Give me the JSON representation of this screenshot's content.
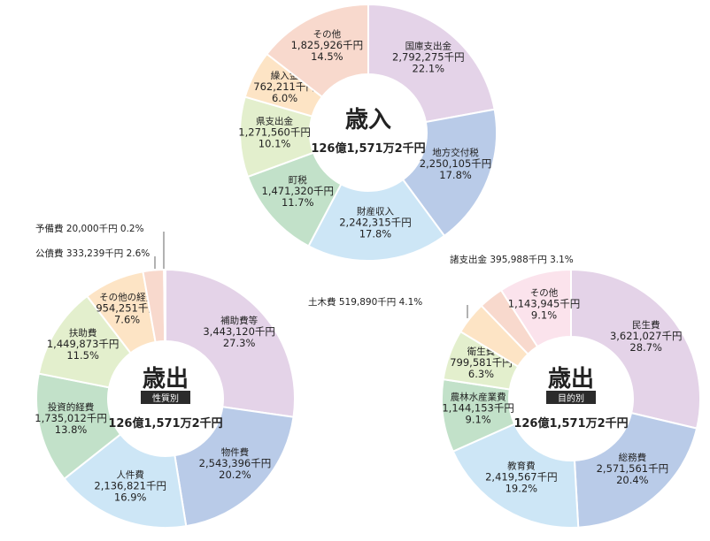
{
  "chart_data": [
    {
      "type": "pie",
      "title": "歳入",
      "subtitle": "",
      "total": "126億1,571万2千円",
      "slices": [
        {
          "name": "国庫支出金",
          "amount": "2,792,275",
          "unit": "千円",
          "percent": 22.1,
          "percent_label": "22.1%",
          "color": "#e4d3e8"
        },
        {
          "name": "地方交付税",
          "amount": "2,250,105",
          "unit": "千円",
          "percent": 17.8,
          "percent_label": "17.8%",
          "color": "#b9cbe8"
        },
        {
          "name": "財産収入",
          "amount": "2,242,315",
          "unit": "千円",
          "percent": 17.8,
          "percent_label": "17.8%",
          "color": "#cde6f6"
        },
        {
          "name": "町税",
          "amount": "1,471,320",
          "unit": "千円",
          "percent": 11.7,
          "percent_label": "11.7%",
          "color": "#c2e1c9"
        },
        {
          "name": "県支出金",
          "amount": "1,271,560",
          "unit": "千円",
          "percent": 10.1,
          "percent_label": "10.1%",
          "color": "#e3efcd"
        },
        {
          "name": "繰入金",
          "amount": "762,211",
          "unit": "千円",
          "percent": 6.0,
          "percent_label": "6.0%",
          "color": "#fde4c5"
        },
        {
          "name": "その他",
          "amount": "1,825,926",
          "unit": "千円",
          "percent": 14.5,
          "percent_label": "14.5%",
          "color": "#f8d9cd"
        }
      ]
    },
    {
      "type": "pie",
      "title": "歳出",
      "subtitle": "性質別",
      "total": "126億1,571万2千円",
      "slices": [
        {
          "name": "補助費等",
          "amount": "3,443,120",
          "unit": "千円",
          "percent": 27.3,
          "percent_label": "27.3%",
          "color": "#e4d3e8"
        },
        {
          "name": "物件費",
          "amount": "2,543,396",
          "unit": "千円",
          "percent": 20.2,
          "percent_label": "20.2%",
          "color": "#b9cbe8"
        },
        {
          "name": "人件費",
          "amount": "2,136,821",
          "unit": "千円",
          "percent": 16.9,
          "percent_label": "16.9%",
          "color": "#cde6f6"
        },
        {
          "name": "投資的経費",
          "amount": "1,735,012",
          "unit": "千円",
          "percent": 13.8,
          "percent_label": "13.8%",
          "color": "#c2e1c9"
        },
        {
          "name": "扶助費",
          "amount": "1,449,873",
          "unit": "千円",
          "percent": 11.5,
          "percent_label": "11.5%",
          "color": "#e3efcd"
        },
        {
          "name": "その他の経費",
          "amount": "954,251",
          "unit": "千円",
          "percent": 7.6,
          "percent_label": "7.6%",
          "color": "#fde4c5"
        },
        {
          "name": "公債費",
          "amount": "333,239",
          "unit": "千円",
          "percent": 2.6,
          "percent_label": "2.6%",
          "color": "#f8d9cd"
        },
        {
          "name": "予備費",
          "amount": "20,000",
          "unit": "千円",
          "percent": 0.2,
          "percent_label": "0.2%",
          "color": "#fbe3ec"
        }
      ]
    },
    {
      "type": "pie",
      "title": "歳出",
      "subtitle": "目的別",
      "total": "126億1,571万2千円",
      "slices": [
        {
          "name": "民生費",
          "amount": "3,621,027",
          "unit": "千円",
          "percent": 28.7,
          "percent_label": "28.7%",
          "color": "#e4d3e8"
        },
        {
          "name": "総務費",
          "amount": "2,571,561",
          "unit": "千円",
          "percent": 20.4,
          "percent_label": "20.4%",
          "color": "#b9cbe8"
        },
        {
          "name": "教育費",
          "amount": "2,419,567",
          "unit": "千円",
          "percent": 19.2,
          "percent_label": "19.2%",
          "color": "#cde6f6"
        },
        {
          "name": "農林水産業費",
          "amount": "1,144,153",
          "unit": "千円",
          "percent": 9.1,
          "percent_label": "9.1%",
          "color": "#c2e1c9"
        },
        {
          "name": "衛生費",
          "amount": "799,581",
          "unit": "千円",
          "percent": 6.3,
          "percent_label": "6.3%",
          "color": "#e3efcd"
        },
        {
          "name": "土木費",
          "amount": "519,890",
          "unit": "千円",
          "percent": 4.1,
          "percent_label": "4.1%",
          "color": "#fde4c5"
        },
        {
          "name": "諸支出金",
          "amount": "395,988",
          "unit": "千円",
          "percent": 3.1,
          "percent_label": "3.1%",
          "color": "#f8d9cd"
        },
        {
          "name": "その他",
          "amount": "1,143,945",
          "unit": "千円",
          "percent": 9.1,
          "percent_label": "9.1%",
          "color": "#fbe3ec"
        }
      ]
    }
  ],
  "colors": {
    "text": "#222222",
    "badge": "#2b2b2b",
    "callout_line": "#555555"
  }
}
